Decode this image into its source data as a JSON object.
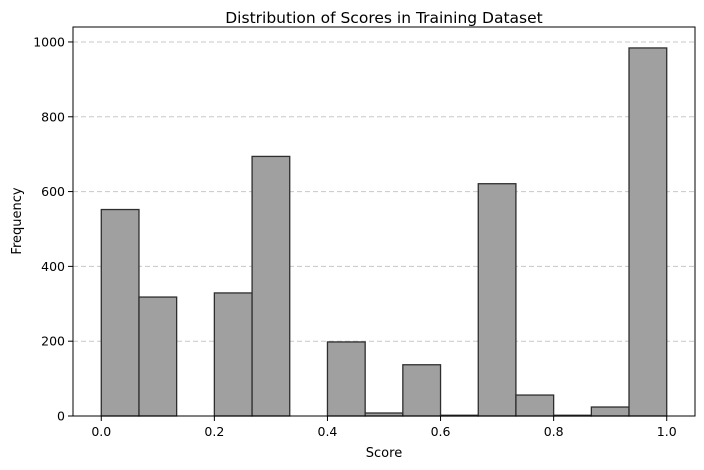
{
  "chart_data": {
    "type": "bar",
    "title": "Distribution of Scores in Training Dataset",
    "xlabel": "Score",
    "ylabel": "Frequency",
    "xlim": [
      -0.05,
      1.05
    ],
    "ylim": [
      0,
      1040
    ],
    "xticks": [
      0.0,
      0.2,
      0.4,
      0.6,
      0.8,
      1.0
    ],
    "xtick_labels": [
      "0.0",
      "0.2",
      "0.4",
      "0.6",
      "0.8",
      "1.0"
    ],
    "yticks": [
      0,
      200,
      400,
      600,
      800,
      1000
    ],
    "ytick_labels": [
      "0",
      "200",
      "400",
      "600",
      "800",
      "1000"
    ],
    "grid": "y-dashed",
    "bins": [
      {
        "start": 0.0,
        "end": 0.0667,
        "value": 552
      },
      {
        "start": 0.0667,
        "end": 0.1333,
        "value": 318
      },
      {
        "start": 0.1333,
        "end": 0.2,
        "value": 0
      },
      {
        "start": 0.2,
        "end": 0.2667,
        "value": 329
      },
      {
        "start": 0.2667,
        "end": 0.3333,
        "value": 694
      },
      {
        "start": 0.3333,
        "end": 0.4,
        "value": 0
      },
      {
        "start": 0.4,
        "end": 0.4667,
        "value": 198
      },
      {
        "start": 0.4667,
        "end": 0.5333,
        "value": 8
      },
      {
        "start": 0.5333,
        "end": 0.6,
        "value": 137
      },
      {
        "start": 0.6,
        "end": 0.6667,
        "value": 2
      },
      {
        "start": 0.6667,
        "end": 0.7333,
        "value": 621
      },
      {
        "start": 0.7333,
        "end": 0.8,
        "value": 56
      },
      {
        "start": 0.8,
        "end": 0.8667,
        "value": 2
      },
      {
        "start": 0.8667,
        "end": 0.9333,
        "value": 24
      },
      {
        "start": 0.9333,
        "end": 1.0,
        "value": 984
      }
    ],
    "colors": {
      "bar_fill": "#a0a0a0",
      "bar_edge": "#2e2e2e",
      "grid": "#c8c8c8"
    }
  }
}
